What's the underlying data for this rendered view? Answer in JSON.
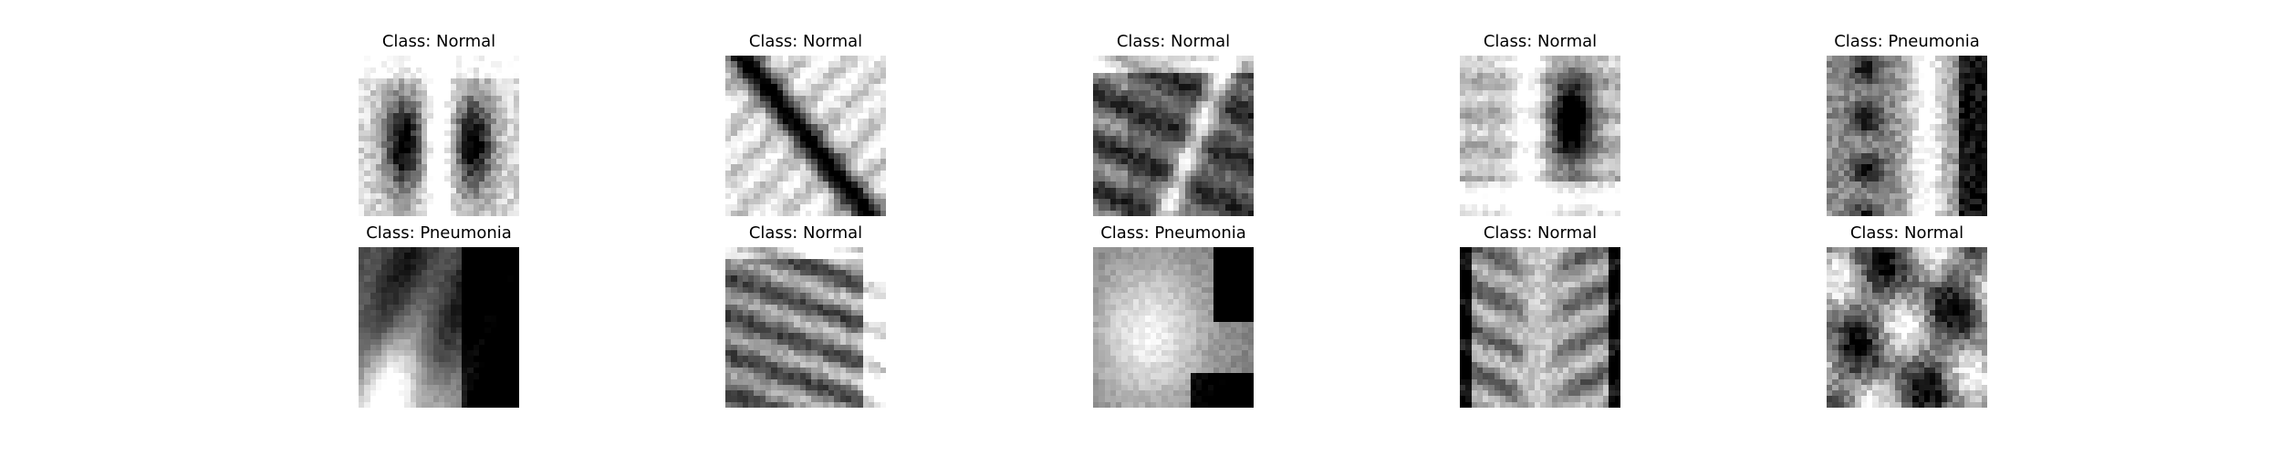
{
  "samples": [
    {
      "label": "Class: Normal",
      "pattern": "lungs-frontal",
      "tint": "#ffffff"
    },
    {
      "label": "Class: Normal",
      "pattern": "diagonal-rib",
      "tint": "#ffffff"
    },
    {
      "label": "Class: Normal",
      "pattern": "dark-ribs",
      "tint": "#ffffff"
    },
    {
      "label": "Class: Normal",
      "pattern": "single-lung",
      "tint": "#ffffff"
    },
    {
      "label": "Class: Pneumonia",
      "pattern": "vertical-spine",
      "tint": "#ffffff"
    },
    {
      "label": "Class: Pneumonia",
      "pattern": "hazy-dark",
      "tint": "#ffffff"
    },
    {
      "label": "Class: Normal",
      "pattern": "rib-stripes",
      "tint": "#ffffff"
    },
    {
      "label": "Class: Pneumonia",
      "pattern": "bright-blob",
      "tint": "#ffffff"
    },
    {
      "label": "Class: Normal",
      "pattern": "ribs-spine",
      "tint": "#ffffff"
    },
    {
      "label": "Class: Normal",
      "pattern": "noisy-blend",
      "tint": "#ffffff"
    }
  ]
}
